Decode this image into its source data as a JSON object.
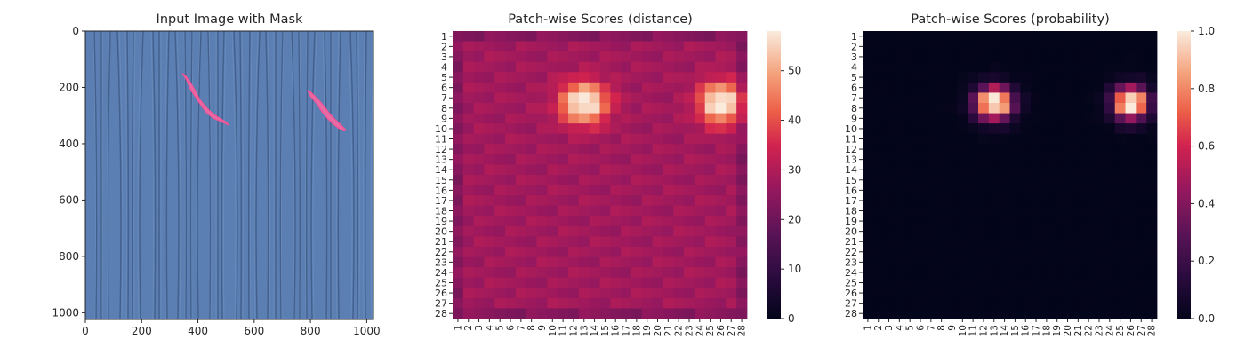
{
  "chart_data": [
    {
      "type": "image",
      "title": "Input Image with Mask",
      "xlim": [
        0,
        1024
      ],
      "ylim": [
        1024,
        0
      ],
      "xticks": [
        0,
        200,
        400,
        600,
        800,
        1000
      ],
      "yticks": [
        0,
        200,
        400,
        600,
        800,
        1000
      ],
      "background_color": "#5b7fb2",
      "mask_color": "#f06aa6",
      "mask_regions": [
        {
          "name": "left-defect",
          "path": [
            [
              345,
              150
            ],
            [
              360,
              175
            ],
            [
              375,
              210
            ],
            [
              392,
              235
            ],
            [
              410,
              262
            ],
            [
              430,
              290
            ],
            [
              455,
              310
            ],
            [
              480,
              320
            ],
            [
              505,
              332
            ],
            [
              512,
              335
            ],
            [
              498,
              322
            ],
            [
              470,
              305
            ],
            [
              445,
              286
            ],
            [
              425,
              266
            ],
            [
              405,
              240
            ],
            [
              390,
              210
            ],
            [
              372,
              180
            ],
            [
              355,
              158
            ]
          ]
        },
        {
          "name": "right-defect",
          "path": [
            [
              790,
              212
            ],
            [
              800,
              232
            ],
            [
              820,
              255
            ],
            [
              840,
              285
            ],
            [
              860,
              310
            ],
            [
              880,
              330
            ],
            [
              900,
              345
            ],
            [
              920,
              355
            ],
            [
              925,
              350
            ],
            [
              910,
              335
            ],
            [
              892,
              318
            ],
            [
              872,
              298
            ],
            [
              852,
              272
            ],
            [
              830,
              245
            ],
            [
              810,
              225
            ],
            [
              796,
              213
            ]
          ]
        }
      ]
    },
    {
      "type": "heatmap",
      "title": "Patch-wise Scores (distance)",
      "x_categories": [
        "1",
        "2",
        "3",
        "4",
        "5",
        "6",
        "7",
        "8",
        "9",
        "10",
        "11",
        "12",
        "13",
        "14",
        "15",
        "16",
        "17",
        "18",
        "19",
        "20",
        "21",
        "22",
        "23",
        "24",
        "25",
        "26",
        "27",
        "28"
      ],
      "y_categories": [
        "1",
        "2",
        "3",
        "4",
        "5",
        "6",
        "7",
        "8",
        "9",
        "10",
        "11",
        "12",
        "13",
        "14",
        "15",
        "16",
        "17",
        "18",
        "19",
        "20",
        "21",
        "22",
        "23",
        "24",
        "25",
        "26",
        "27",
        "28"
      ],
      "colorbar": {
        "min": 0,
        "max": 58,
        "ticks": [
          0,
          10,
          20,
          30,
          40,
          50
        ]
      },
      "background_value": 28,
      "hotspots": [
        {
          "label": "left-anomaly",
          "center_col": 13,
          "center_row": 7.5,
          "peak": 58,
          "spread_col": 2.2,
          "spread_row": 2.0
        },
        {
          "label": "right-anomaly",
          "center_col": 26,
          "center_row": 7.5,
          "peak": 58,
          "spread_col": 2.0,
          "spread_row": 2.0
        }
      ]
    },
    {
      "type": "heatmap",
      "title": "Patch-wise Scores (probability)",
      "x_categories": [
        "1",
        "2",
        "3",
        "4",
        "5",
        "6",
        "7",
        "8",
        "9",
        "10",
        "11",
        "12",
        "13",
        "14",
        "15",
        "16",
        "17",
        "18",
        "19",
        "20",
        "21",
        "22",
        "23",
        "24",
        "25",
        "26",
        "27",
        "28"
      ],
      "y_categories": [
        "1",
        "2",
        "3",
        "4",
        "5",
        "6",
        "7",
        "8",
        "9",
        "10",
        "11",
        "12",
        "13",
        "14",
        "15",
        "16",
        "17",
        "18",
        "19",
        "20",
        "21",
        "22",
        "23",
        "24",
        "25",
        "26",
        "27",
        "28"
      ],
      "colorbar": {
        "min": 0.0,
        "max": 1.0,
        "ticks": [
          "0.0",
          "0.2",
          "0.4",
          "0.6",
          "0.8",
          "1.0"
        ]
      },
      "background_value": 0.02,
      "hotspots": [
        {
          "label": "left-anomaly",
          "center_col": 13,
          "center_row": 7.5,
          "peak": 1.0,
          "spread_col": 2.2,
          "spread_row": 2.0
        },
        {
          "label": "right-anomaly",
          "center_col": 26,
          "center_row": 7.5,
          "peak": 1.0,
          "spread_col": 2.0,
          "spread_row": 2.0
        }
      ]
    }
  ]
}
